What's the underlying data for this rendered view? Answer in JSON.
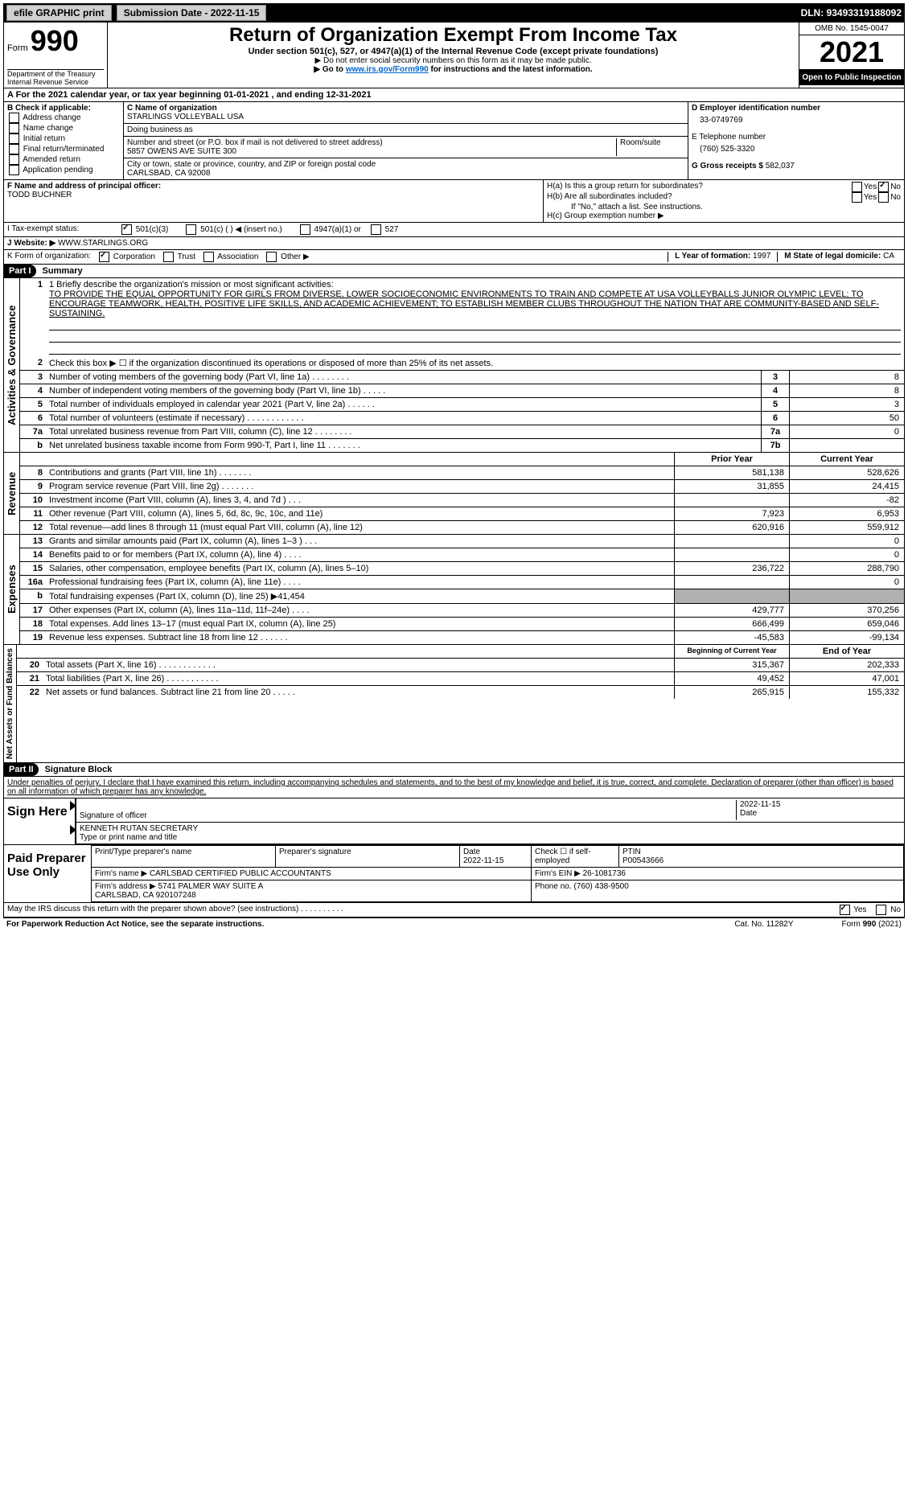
{
  "topbar": {
    "efile": "efile GRAPHIC print",
    "submission_label": "Submission Date - 2022-11-15",
    "dln_label": "DLN: 93493319188092"
  },
  "header": {
    "form_word": "Form",
    "form_num": "990",
    "title": "Return of Organization Exempt From Income Tax",
    "subtitle": "Under section 501(c), 527, or 4947(a)(1) of the Internal Revenue Code (except private foundations)",
    "note1": "▶ Do not enter social security numbers on this form as it may be made public.",
    "note2_pre": "▶ Go to ",
    "note2_link": "www.irs.gov/Form990",
    "note2_post": " for instructions and the latest information.",
    "omb": "OMB No. 1545-0047",
    "year": "2021",
    "inspect": "Open to Public Inspection",
    "dept": "Department of the Treasury\nInternal Revenue Service"
  },
  "row_a": "A For the 2021 calendar year, or tax year beginning 01-01-2021    , and ending 12-31-2021",
  "section_b": {
    "label": "B Check if applicable:",
    "opts": [
      "Address change",
      "Name change",
      "Initial return",
      "Final return/terminated",
      "Amended return",
      "Application pending"
    ],
    "c_name_lbl": "C Name of organization",
    "c_name": "STARLINGS VOLLEYBALL USA",
    "dba_lbl": "Doing business as",
    "dba": "",
    "street_lbl": "Number and street (or P.O. box if mail is not delivered to street address)",
    "room_lbl": "Room/suite",
    "street": "5857 OWENS AVE SUITE 300",
    "city_lbl": "City or town, state or province, country, and ZIP or foreign postal code",
    "city": "CARLSBAD, CA  92008",
    "d_lbl": "D Employer identification number",
    "d_val": "33-0749769",
    "e_lbl": "E Telephone number",
    "e_val": "(760) 525-3320",
    "g_lbl": "G Gross receipts $",
    "g_val": "582,037"
  },
  "section_f": {
    "f_lbl": "F  Name and address of principal officer:",
    "f_name": "TODD BUCHNER",
    "ha": "H(a)  Is this a group return for subordinates?",
    "hb": "H(b)  Are all subordinates included?",
    "hb_note": "If \"No,\" attach a list. See instructions.",
    "hc": "H(c)  Group exemption number ▶",
    "yes": "Yes",
    "no": "No"
  },
  "row_i": {
    "lbl": "I   Tax-exempt status:",
    "opts": [
      "501(c)(3)",
      "501(c) (  ) ◀ (insert no.)",
      "4947(a)(1) or",
      "527"
    ]
  },
  "row_j": {
    "lbl": "J   Website: ▶",
    "val": "WWW.STARLINGS.ORG"
  },
  "row_k": {
    "lbl": "K Form of organization:",
    "opts": [
      "Corporation",
      "Trust",
      "Association",
      "Other ▶"
    ],
    "l_lbl": "L Year of formation:",
    "l_val": "1997",
    "m_lbl": "M State of legal domicile:",
    "m_val": "CA"
  },
  "part1": {
    "header": "Part I",
    "title": "Summary"
  },
  "mission": {
    "line1_lbl": "1  Briefly describe the organization's mission or most significant activities:",
    "text": "TO PROVIDE THE EQUAL OPPORTUNITY FOR GIRLS FROM DIVERSE, LOWER SOCIOECONOMIC ENVIRONMENTS TO TRAIN AND COMPETE AT USA VOLLEYBALLS JUNIOR OLYMPIC LEVEL; TO ENCOURAGE TEAMWORK, HEALTH, POSITIVE LIFE SKILLS, AND ACADEMIC ACHIEVEMENT; TO ESTABLISH MEMBER CLUBS THROUGHOUT THE NATION THAT ARE COMMUNITY-BASED AND SELF-SUSTAINING."
  },
  "governance": {
    "side": "Activities & Governance",
    "rows": [
      {
        "n": "2",
        "d": "Check this box ▶ ☐ if the organization discontinued its operations or disposed of more than 25% of its net assets."
      },
      {
        "n": "3",
        "d": "Number of voting members of the governing body (Part VI, line 1a)   .    .    .    .    .    .    .    .",
        "lbl": "3",
        "v": "8"
      },
      {
        "n": "4",
        "d": "Number of independent voting members of the governing body (Part VI, line 1b)   .    .    .    .    .",
        "lbl": "4",
        "v": "8"
      },
      {
        "n": "5",
        "d": "Total number of individuals employed in calendar year 2021 (Part V, line 2a)   .    .    .    .    .    .",
        "lbl": "5",
        "v": "3"
      },
      {
        "n": "6",
        "d": "Total number of volunteers (estimate if necessary)   .    .    .    .    .    .    .    .    .    .    .    .",
        "lbl": "6",
        "v": "50"
      },
      {
        "n": "7a",
        "d": "Total unrelated business revenue from Part VIII, column (C), line 12   .    .    .    .    .    .    .    .",
        "lbl": "7a",
        "v": "0"
      },
      {
        "n": "b",
        "d": "Net unrelated business taxable income from Form 990-T, Part I, line 11   .    .    .    .    .    .    .",
        "lbl": "7b",
        "v": ""
      }
    ]
  },
  "revenue": {
    "side": "Revenue",
    "header_prior": "Prior Year",
    "header_current": "Current Year",
    "rows": [
      {
        "n": "8",
        "d": "Contributions and grants (Part VIII, line 1h)   .    .    .    .    .    .    .",
        "p": "581,138",
        "c": "528,626"
      },
      {
        "n": "9",
        "d": "Program service revenue (Part VIII, line 2g)   .    .    .    .    .    .    .",
        "p": "31,855",
        "c": "24,415"
      },
      {
        "n": "10",
        "d": "Investment income (Part VIII, column (A), lines 3, 4, and 7d )   .    .    .",
        "p": "",
        "c": "-82"
      },
      {
        "n": "11",
        "d": "Other revenue (Part VIII, column (A), lines 5, 6d, 8c, 9c, 10c, and 11e)",
        "p": "7,923",
        "c": "6,953"
      },
      {
        "n": "12",
        "d": "Total revenue—add lines 8 through 11 (must equal Part VIII, column (A), line 12)",
        "p": "620,916",
        "c": "559,912"
      }
    ]
  },
  "expenses": {
    "side": "Expenses",
    "rows": [
      {
        "n": "13",
        "d": "Grants and similar amounts paid (Part IX, column (A), lines 1–3 )   .    .    .",
        "p": "",
        "c": "0"
      },
      {
        "n": "14",
        "d": "Benefits paid to or for members (Part IX, column (A), line 4)   .    .    .    .",
        "p": "",
        "c": "0"
      },
      {
        "n": "15",
        "d": "Salaries, other compensation, employee benefits (Part IX, column (A), lines 5–10)",
        "p": "236,722",
        "c": "288,790"
      },
      {
        "n": "16a",
        "d": "Professional fundraising fees (Part IX, column (A), line 11e)   .    .    .    .",
        "p": "",
        "c": "0"
      },
      {
        "n": "b",
        "d": "Total fundraising expenses (Part IX, column (D), line 25) ▶41,454",
        "grey": true
      },
      {
        "n": "17",
        "d": "Other expenses (Part IX, column (A), lines 11a–11d, 11f–24e)   .    .    .    .",
        "p": "429,777",
        "c": "370,256"
      },
      {
        "n": "18",
        "d": "Total expenses. Add lines 13–17 (must equal Part IX, column (A), line 25)",
        "p": "666,499",
        "c": "659,046"
      },
      {
        "n": "19",
        "d": "Revenue less expenses. Subtract line 18 from line 12   .    .    .    .    .    .",
        "p": "-45,583",
        "c": "-99,134"
      }
    ]
  },
  "netassets": {
    "side": "Net Assets or Fund Balances",
    "header_begin": "Beginning of Current Year",
    "header_end": "End of Year",
    "rows": [
      {
        "n": "20",
        "d": "Total assets (Part X, line 16)   .    .    .    .    .    .    .    .    .    .    .    .",
        "p": "315,367",
        "c": "202,333"
      },
      {
        "n": "21",
        "d": "Total liabilities (Part X, line 26)   .    .    .    .    .    .    .    .    .    .    .",
        "p": "49,452",
        "c": "47,001"
      },
      {
        "n": "22",
        "d": "Net assets or fund balances. Subtract line 21 from line 20   .    .    .    .    .",
        "p": "265,915",
        "c": "155,332"
      }
    ]
  },
  "part2": {
    "header": "Part II",
    "title": "Signature Block"
  },
  "penalties": "Under penalties of perjury, I declare that I have examined this return, including accompanying schedules and statements, and to the best of my knowledge and belief, it is true, correct, and complete. Declaration of preparer (other than officer) is based on all information of which preparer has any knowledge.",
  "sign": {
    "label": "Sign Here",
    "sig_officer": "Signature of officer",
    "date": "2022-11-15",
    "date_lbl": "Date",
    "name": "KENNETH RUTAN  SECRETARY",
    "name_lbl": "Type or print name and title"
  },
  "preparer": {
    "label": "Paid Preparer Use Only",
    "h_name": "Print/Type preparer's name",
    "h_sig": "Preparer's signature",
    "h_date": "Date",
    "date": "2022-11-15",
    "h_check": "Check ☐ if self-employed",
    "h_ptin": "PTIN",
    "ptin": "P00543666",
    "firm_lbl": "Firm's name    ▶",
    "firm": "CARLSBAD CERTIFIED PUBLIC ACCOUNTANTS",
    "ein_lbl": "Firm's EIN ▶",
    "ein": "26-1081736",
    "addr_lbl": "Firm's address ▶",
    "addr": "5741 PALMER WAY SUITE A\nCARLSBAD, CA  920107248",
    "phone_lbl": "Phone no.",
    "phone": "(760) 438-9500"
  },
  "may_irs": "May the IRS discuss this return with the preparer shown above? (see instructions)   .    .    .    .    .    .    .    .    .    .",
  "footer": {
    "left": "For Paperwork Reduction Act Notice, see the separate instructions.",
    "mid": "Cat. No. 11282Y",
    "right": "Form 990 (2021)"
  }
}
